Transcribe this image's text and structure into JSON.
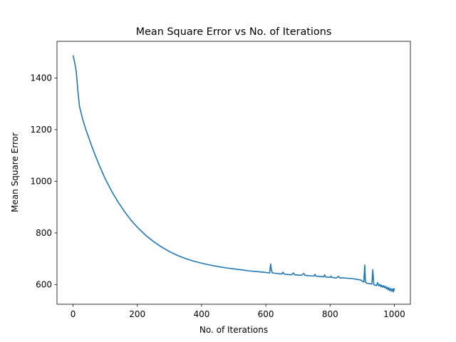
{
  "chart_data": {
    "type": "line",
    "title": "Mean Square Error vs No. of Iterations",
    "xlabel": "No. of Iterations",
    "ylabel": "Mean Square Error",
    "xlim": [
      -50,
      1050
    ],
    "ylim": [
      524,
      1542
    ],
    "xticks": [
      0,
      200,
      400,
      600,
      800,
      1000
    ],
    "yticks": [
      600,
      800,
      1000,
      1200,
      1400
    ],
    "grid": false,
    "legend": "none",
    "series": [
      {
        "color": "#1f77b4",
        "x": [
          0,
          5,
          10,
          15,
          20,
          25,
          30,
          40,
          50,
          60,
          70,
          80,
          90,
          100,
          120,
          140,
          160,
          180,
          200,
          225,
          250,
          275,
          300,
          325,
          350,
          375,
          400,
          425,
          450,
          475,
          500,
          525,
          550,
          575,
          600,
          612,
          615,
          617,
          620,
          630,
          640,
          650,
          653,
          656,
          660,
          670,
          680,
          686,
          690,
          700,
          710,
          718,
          722,
          730,
          740,
          750,
          753,
          756,
          760,
          770,
          780,
          783,
          786,
          790,
          800,
          803,
          806,
          810,
          820,
          826,
          830,
          840,
          850,
          860,
          870,
          880,
          890,
          895,
          900,
          905,
          908,
          910,
          915,
          920,
          925,
          930,
          933,
          936,
          940,
          945,
          948,
          950,
          952,
          955,
          958,
          960,
          963,
          966,
          969,
          972,
          975,
          978,
          980,
          983,
          986,
          989,
          992,
          995,
          997,
          999,
          1000
        ],
        "y": [
          1488,
          1460,
          1425,
          1350,
          1290,
          1265,
          1240,
          1200,
          1165,
          1130,
          1098,
          1067,
          1038,
          1010,
          962,
          920,
          883,
          850,
          822,
          792,
          767,
          746,
          728,
          713,
          701,
          691,
          683,
          676,
          670,
          665,
          661,
          657,
          653,
          650,
          647,
          645,
          680,
          660,
          645,
          644,
          642,
          641,
          648,
          643,
          640,
          639,
          638,
          645,
          638,
          637,
          636,
          643,
          636,
          635,
          634,
          633,
          640,
          633,
          632,
          631,
          630,
          638,
          630,
          629,
          628,
          633,
          628,
          627,
          626,
          632,
          626,
          626,
          625,
          624,
          623,
          621,
          619,
          618,
          614,
          610,
          676,
          610,
          605,
          604,
          603,
          602,
          658,
          600,
          598,
          596,
          608,
          600,
          595,
          601,
          592,
          598,
          590,
          596,
          588,
          594,
          584,
          590,
          580,
          588,
          576,
          585,
          574,
          583,
          572,
          585,
          578
        ]
      }
    ]
  }
}
